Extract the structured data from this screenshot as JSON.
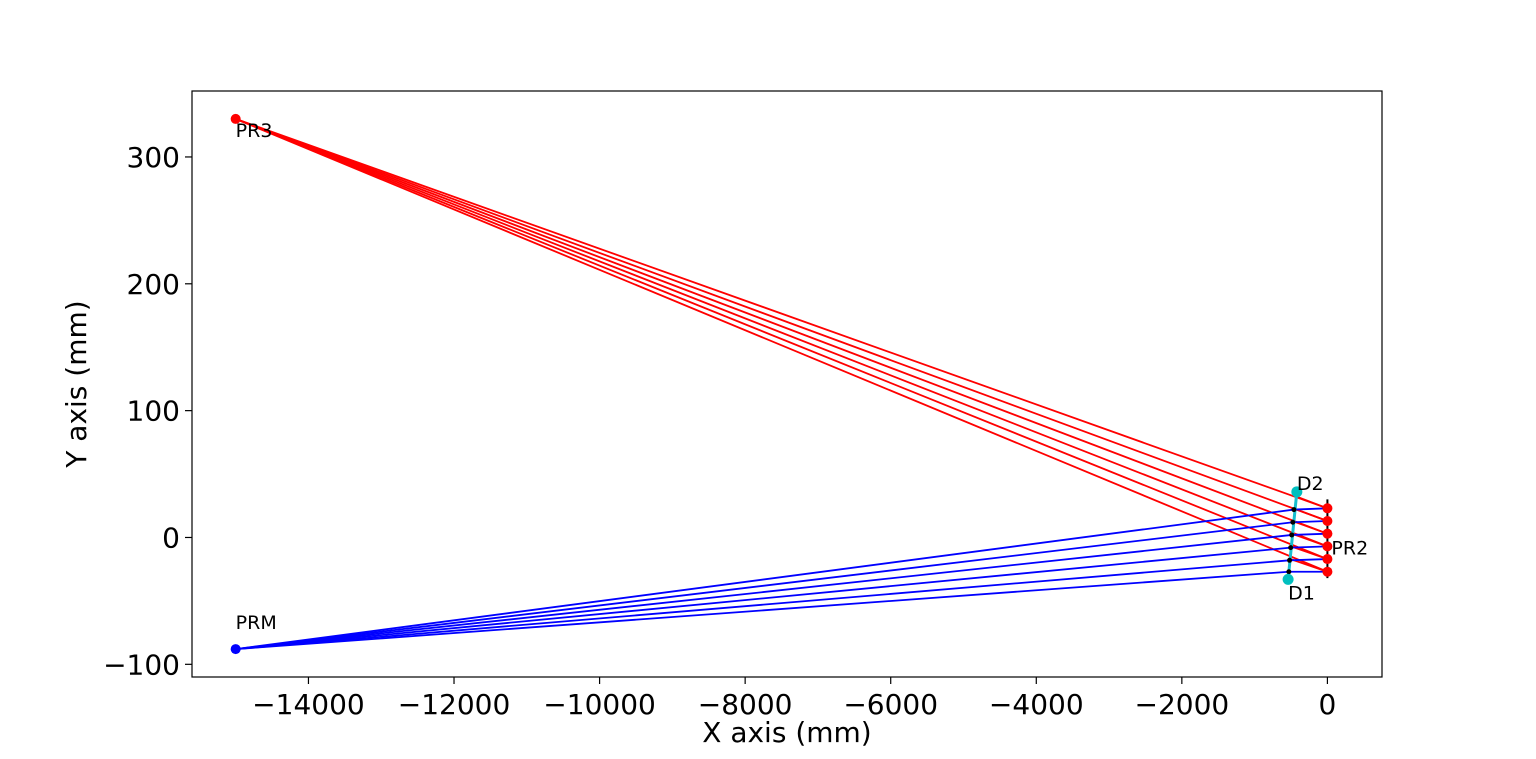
{
  "chart_data": {
    "type": "line",
    "title": "",
    "xlabel": "X axis (mm)",
    "ylabel": "Y axis (mm)",
    "xlim": [
      -15600,
      750
    ],
    "ylim": [
      -110,
      352
    ],
    "xticks": [
      -14000,
      -12000,
      -10000,
      -8000,
      -6000,
      -4000,
      -2000,
      0
    ],
    "yticks": [
      -100,
      0,
      100,
      200,
      300
    ],
    "xtick_labels": [
      "−14000",
      "−12000",
      "−10000",
      "−8000",
      "−6000",
      "−4000",
      "−2000",
      "0"
    ],
    "ytick_labels": [
      "−100",
      "0",
      "100",
      "200",
      "300"
    ],
    "grid": false,
    "colors": {
      "red_rays": "#ff0000",
      "blue_rays": "#0000ff",
      "detector": "#00bfbf",
      "detector_line": "#17becf",
      "mirror": "#000000",
      "axes": "#000000"
    },
    "points": {
      "PR3": {
        "x": -15000,
        "y": 330
      },
      "PRM": {
        "x": -15000,
        "y": -88
      },
      "D1": {
        "x": -540,
        "y": -33
      },
      "D2": {
        "x": -420,
        "y": 36
      }
    },
    "pr2_points_y": [
      23,
      13,
      3,
      -7,
      -17,
      -27
    ],
    "pr2_x": 0,
    "pr2_mirror_y": [
      -32,
      30
    ],
    "red_rays": [
      {
        "from": [
          -15000,
          330
        ],
        "to_pr2_y": 23,
        "to_end": [
          -460,
          33
        ]
      },
      {
        "from": [
          -15000,
          330
        ],
        "to_pr2_y": 13,
        "to_end": [
          -470,
          23
        ]
      },
      {
        "from": [
          -15000,
          330
        ],
        "to_pr2_y": 3,
        "to_end": [
          -480,
          13
        ]
      },
      {
        "from": [
          -15000,
          330
        ],
        "to_pr2_y": -7,
        "to_end": [
          -490,
          3
        ]
      },
      {
        "from": [
          -15000,
          330
        ],
        "to_pr2_y": -17,
        "to_end": [
          -500,
          -7
        ]
      },
      {
        "from": [
          -15000,
          330
        ],
        "to_pr2_y": -27,
        "to_end": [
          -510,
          -17
        ]
      }
    ],
    "blue_rays": [
      {
        "from": [
          -15000,
          -88
        ],
        "to": [
          -460,
          22
        ]
      },
      {
        "from": [
          -15000,
          -88
        ],
        "to": [
          -475,
          12
        ]
      },
      {
        "from": [
          -15000,
          -88
        ],
        "to": [
          -490,
          2
        ]
      },
      {
        "from": [
          -15000,
          -88
        ],
        "to": [
          -505,
          -8
        ]
      },
      {
        "from": [
          -15000,
          -88
        ],
        "to": [
          -520,
          -18
        ]
      },
      {
        "from": [
          -15000,
          -88
        ],
        "to": [
          -530,
          -27
        ]
      }
    ],
    "blue_to_pr2": [
      {
        "from": [
          -460,
          22
        ],
        "to": [
          0,
          23
        ]
      },
      {
        "from": [
          -475,
          12
        ],
        "to": [
          0,
          13
        ]
      },
      {
        "from": [
          -490,
          2
        ],
        "to": [
          0,
          3
        ]
      },
      {
        "from": [
          -505,
          -8
        ],
        "to": [
          0,
          -7
        ]
      },
      {
        "from": [
          -520,
          -18
        ],
        "to": [
          0,
          -17
        ]
      },
      {
        "from": [
          -530,
          -27
        ],
        "to": [
          0,
          -27
        ]
      }
    ],
    "annotations": [
      {
        "text": "PR3",
        "x": -15000,
        "y": 330
      },
      {
        "text": "PRM",
        "x": -15000,
        "y": -88
      },
      {
        "text": "D2",
        "x": -420,
        "y": 36
      },
      {
        "text": "D1",
        "x": -540,
        "y": -33
      },
      {
        "text": "PR2",
        "x": 0,
        "y": -7
      }
    ]
  }
}
